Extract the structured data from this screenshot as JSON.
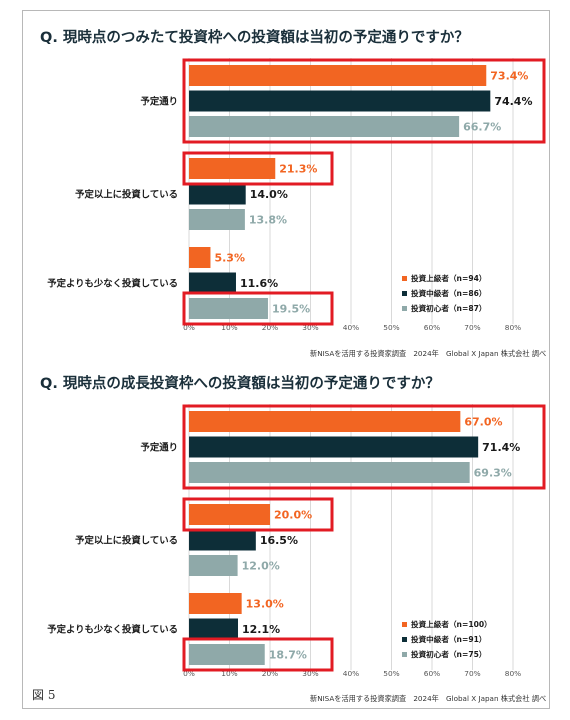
{
  "figure_label": "図 5",
  "colors": {
    "advanced": "#f26522",
    "intermediate": "#0d2e38",
    "beginner": "#8fa9a9",
    "highlight": "#e21b23"
  },
  "chart_data": [
    {
      "type": "bar",
      "orientation": "horizontal",
      "title": "Q. 現時点のつみたて投資枠への投資額は当初の予定通りですか？",
      "source": "新NISAを活用する投資家調査　2024年　Global X Japan 株式会社 調べ",
      "categories": [
        "予定通り",
        "予定以上に投資している",
        "予定よりも少なく投資している"
      ],
      "series": [
        {
          "name": "投資上級者（n=94）",
          "values": [
            73.4,
            21.3,
            5.3
          ],
          "value_labels": [
            "73.4%",
            "21.3%",
            "5.3%"
          ]
        },
        {
          "name": "投資中級者（n=86）",
          "values": [
            74.4,
            14.0,
            11.6
          ],
          "value_labels": [
            "74.4%",
            "14.0%",
            "11.6%"
          ]
        },
        {
          "name": "投資初心者（n=87）",
          "values": [
            66.7,
            13.8,
            19.5
          ],
          "value_labels": [
            "66.7%",
            "13.8%",
            "19.5%"
          ]
        }
      ],
      "xlim": [
        0,
        80
      ],
      "x_ticks": [
        "0%",
        "10%",
        "20%",
        "30%",
        "40%",
        "50%",
        "60%",
        "70%",
        "80%"
      ],
      "grid": true,
      "legend_position": "bottom-right",
      "highlighted": [
        "予定通り: all series",
        "予定以上に投資している: 投資上級者",
        "予定よりも少なく投資している: 投資初心者"
      ]
    },
    {
      "type": "bar",
      "orientation": "horizontal",
      "title": "Q. 現時点の成長投資枠への投資額は当初の予定通りですか？",
      "source": "新NISAを活用する投資家調査　2024年　Global X Japan 株式会社 調べ",
      "categories": [
        "予定通り",
        "予定以上に投資している",
        "予定よりも少なく投資している"
      ],
      "series": [
        {
          "name": "投資上級者（n=100）",
          "values": [
            67.0,
            20.0,
            13.0
          ],
          "value_labels": [
            "67.0%",
            "20.0%",
            "13.0%"
          ]
        },
        {
          "name": "投資中級者（n=91）",
          "values": [
            71.4,
            16.5,
            12.1
          ],
          "value_labels": [
            "71.4%",
            "16.5%",
            "12.1%"
          ]
        },
        {
          "name": "投資初心者（n=75）",
          "values": [
            69.3,
            12.0,
            18.7
          ],
          "value_labels": [
            "69.3%",
            "12.0%",
            "18.7%"
          ]
        }
      ],
      "xlim": [
        0,
        80
      ],
      "x_ticks": [
        "0%",
        "10%",
        "20%",
        "30%",
        "40%",
        "50%",
        "60%",
        "70%",
        "80%"
      ],
      "grid": true,
      "legend_position": "bottom-right",
      "highlighted": [
        "予定通り: all series",
        "予定以上に投資している: 投資上級者",
        "予定よりも少なく投資している: 投資初心者"
      ]
    }
  ]
}
